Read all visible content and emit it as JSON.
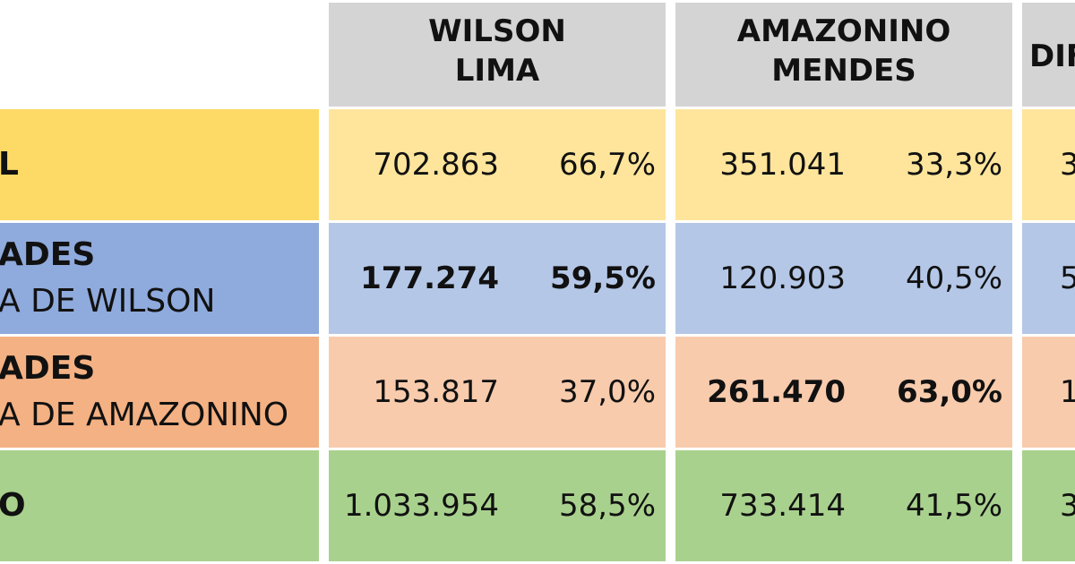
{
  "chart_data": {
    "type": "table",
    "columns": [
      "WILSON LIMA",
      "AMAZONINO MENDES",
      "DIF"
    ],
    "headers": [
      {
        "line1": "WILSON",
        "line2": "LIMA"
      },
      {
        "line1": "AMAZONINO",
        "line2": "MENDES"
      },
      {
        "line1": "DIF",
        "line2": ""
      }
    ],
    "rows": [
      {
        "label_line1": "L",
        "label_line2": "",
        "label_bold": true,
        "wilson_votes": "702.863",
        "wilson_pct": "66,7%",
        "amaz_votes": "351.041",
        "amaz_pct": "33,3%",
        "dif_partial": "3",
        "bold_side": "none"
      },
      {
        "label_line1": "ADES",
        "label_line2": "A DE WILSON",
        "label_bold": true,
        "wilson_votes": "177.274",
        "wilson_pct": "59,5%",
        "amaz_votes": "120.903",
        "amaz_pct": "40,5%",
        "dif_partial": "5",
        "bold_side": "wilson"
      },
      {
        "label_line1": "ADES",
        "label_line2": "A DE AMAZONINO",
        "label_bold": true,
        "wilson_votes": "153.817",
        "wilson_pct": "37,0%",
        "amaz_votes": "261.470",
        "amaz_pct": "63,0%",
        "dif_partial": "1",
        "bold_side": "amaz"
      },
      {
        "label_line1": "O",
        "label_line2": "",
        "label_bold": true,
        "wilson_votes": "1.033.954",
        "wilson_pct": "58,5%",
        "amaz_votes": "733.414",
        "amaz_pct": "41,5%",
        "dif_partial": "3",
        "bold_side": "none"
      }
    ],
    "row_colors": {
      "label": [
        "#fdd966",
        "#8faadc",
        "#f4b183",
        "#a9d18e"
      ],
      "data": [
        "#fee59b",
        "#b4c7e7",
        "#f8cbad",
        "#a9d18e"
      ]
    },
    "header_color": "#d4d4d4"
  }
}
